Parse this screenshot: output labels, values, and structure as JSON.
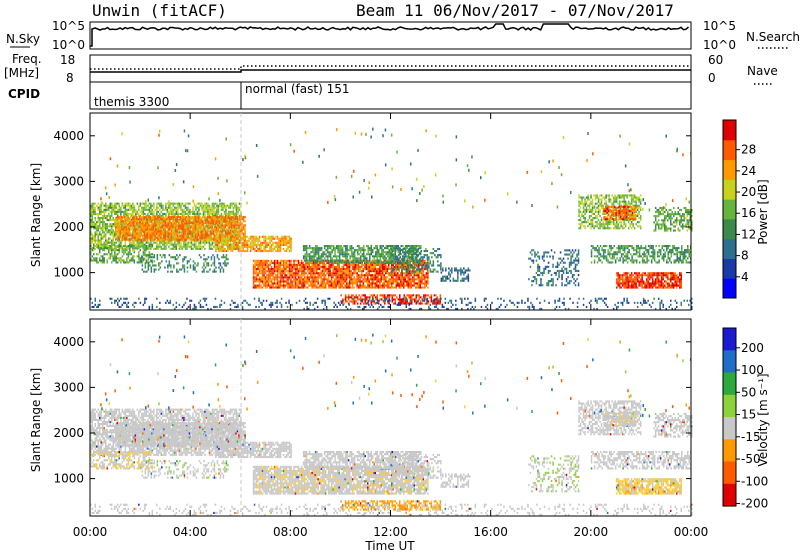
{
  "header": {
    "station": "Unwin (fitACF)",
    "beam_dates": "Beam 11  06/Nov/2017 - 07/Nov/2017"
  },
  "strips": {
    "nsky_label": "N.Sky",
    "nsky_top": "10^5",
    "nsky_bottom": "10^0",
    "nsky_right_top": "10^5",
    "nsky_right_bottom": "10^0",
    "nsearch_label": "N.Search",
    "freq_label": "Freq.",
    "freq_unit": "[MHz]",
    "freq_top": "18",
    "freq_bottom": "8",
    "nave_top": "60",
    "nave_bottom": "0",
    "nave_label": "Nave",
    "cpid_label": "CPID",
    "cpid_mode_1": "themis 3300",
    "cpid_mode_2": "normal (fast) 151"
  },
  "axes": {
    "ylabel": "Slant Range [km]",
    "xlabel": "Time UT",
    "yticks": [
      "1000",
      "2000",
      "3000",
      "4000"
    ],
    "xticks": [
      "00:00",
      "04:00",
      "08:00",
      "12:00",
      "16:00",
      "20:00",
      "00:00"
    ]
  },
  "power_colorbar": {
    "label": "Power [dB]",
    "ticks": [
      "4",
      "8",
      "12",
      "16",
      "20",
      "24",
      "28"
    ],
    "colors": [
      "#0000ff",
      "#1a3aa8",
      "#2e6e8e",
      "#3c8a4a",
      "#66b43c",
      "#c8d21e",
      "#ff9900",
      "#ff5a00",
      "#e00000"
    ]
  },
  "velocity_colorbar": {
    "label": "Velocity [m s⁻¹]",
    "ticks": [
      "200",
      "100",
      "50",
      "15",
      "-15",
      "-50",
      "-100",
      "-200"
    ],
    "colors": [
      "#1a1ad2",
      "#1e6ec8",
      "#2eaa3c",
      "#8cd23c",
      "#c8c8c8",
      "#ff9900",
      "#ff5a00",
      "#e00000"
    ]
  },
  "chart_data": {
    "type": "heatmap",
    "x_range_hours": [
      0,
      24
    ],
    "y_range_km": [
      180,
      4500
    ],
    "power_db_range": [
      0,
      30
    ],
    "velocity_range": [
      -250,
      250
    ],
    "mode_change_hour": 6,
    "echo_regions": [
      {
        "t0": 0.0,
        "t1": 6.0,
        "r0": 1500,
        "r1": 2500,
        "power": 16,
        "vel": 0,
        "density": 0.75
      },
      {
        "t0": 1.0,
        "t1": 6.2,
        "r0": 1700,
        "r1": 2200,
        "power": 24,
        "vel": 0,
        "density": 0.85
      },
      {
        "t0": 0.0,
        "t1": 2.5,
        "r0": 1200,
        "r1": 1600,
        "power": 14,
        "vel": -10,
        "density": 0.55
      },
      {
        "t0": 2.0,
        "t1": 5.5,
        "r0": 1000,
        "r1": 1400,
        "power": 10,
        "vel": 5,
        "density": 0.35
      },
      {
        "t0": 5.0,
        "t1": 8.0,
        "r0": 1450,
        "r1": 1800,
        "power": 22,
        "vel": 0,
        "density": 0.7
      },
      {
        "t0": 6.5,
        "t1": 13.5,
        "r0": 650,
        "r1": 1250,
        "power": 26,
        "vel": -5,
        "density": 0.85
      },
      {
        "t0": 8.5,
        "t1": 13.2,
        "r0": 1200,
        "r1": 1600,
        "power": 12,
        "vel": 0,
        "density": 0.7
      },
      {
        "t0": 10.0,
        "t1": 14.0,
        "r0": 300,
        "r1": 500,
        "power": 28,
        "vel": -40,
        "density": 0.6
      },
      {
        "t0": 12.0,
        "t1": 14.0,
        "r0": 1000,
        "r1": 1500,
        "power": 10,
        "vel": 0,
        "density": 0.4
      },
      {
        "t0": 14.0,
        "t1": 15.2,
        "r0": 800,
        "r1": 1100,
        "power": 8,
        "vel": 0,
        "density": 0.5
      },
      {
        "t0": 17.5,
        "t1": 19.5,
        "r0": 700,
        "r1": 1500,
        "power": 8,
        "vel": 10,
        "density": 0.3
      },
      {
        "t0": 19.5,
        "t1": 22.0,
        "r0": 1950,
        "r1": 2700,
        "power": 16,
        "vel": 0,
        "density": 0.6
      },
      {
        "t0": 20.5,
        "t1": 21.8,
        "r0": 2150,
        "r1": 2450,
        "power": 26,
        "vel": -5,
        "density": 0.8
      },
      {
        "t0": 20.0,
        "t1": 24.0,
        "r0": 1200,
        "r1": 1600,
        "power": 12,
        "vel": 0,
        "density": 0.55
      },
      {
        "t0": 21.0,
        "t1": 23.6,
        "r0": 650,
        "r1": 1000,
        "power": 28,
        "vel": -20,
        "density": 0.85
      },
      {
        "t0": 22.5,
        "t1": 24.0,
        "r0": 1900,
        "r1": 2400,
        "power": 14,
        "vel": 0,
        "density": 0.55
      },
      {
        "t0": 0.0,
        "t1": 24.0,
        "r0": 180,
        "r1": 420,
        "power": 6,
        "vel": 0,
        "density": 0.18
      }
    ]
  }
}
